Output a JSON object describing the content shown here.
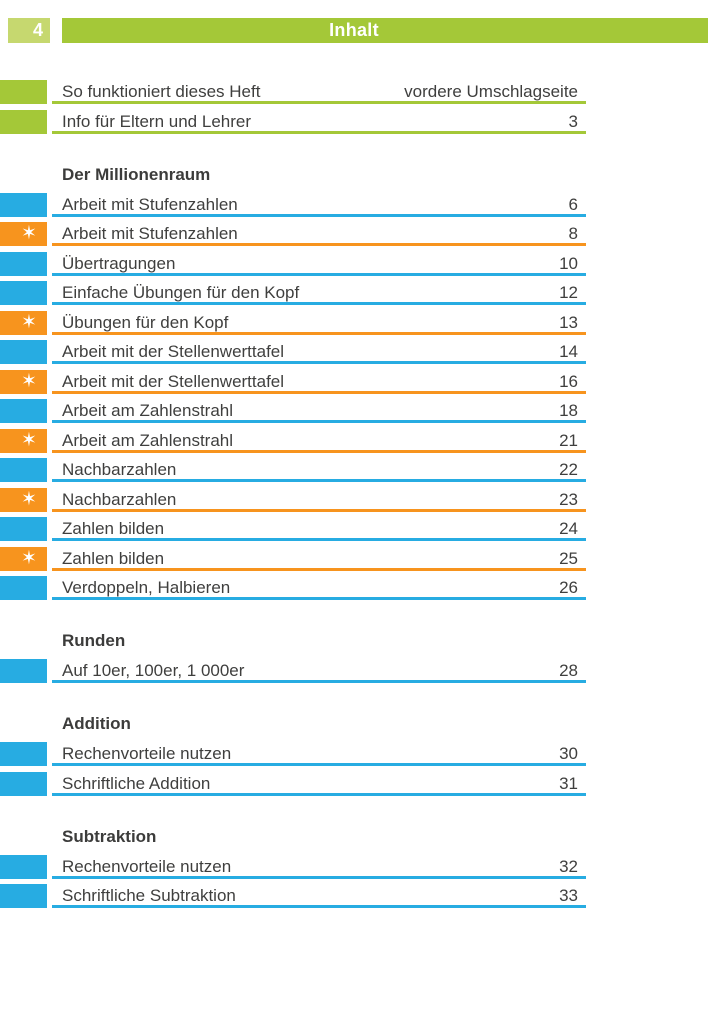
{
  "page": {
    "number": "4",
    "header_title": "Inhalt"
  },
  "colors": {
    "green": "#a4c838",
    "light_green": "#c6d86f",
    "cyan": "#27ace2",
    "orange": "#f7941e",
    "text": "#3f3f3e",
    "white": "#ffffff"
  },
  "icons": {
    "star": "✶"
  },
  "intro_rows": [
    {
      "label": "So funktioniert dieses Heft",
      "page": "vordere Umschlagseite",
      "color": "green",
      "star": false
    },
    {
      "label": "Info für Eltern und Lehrer",
      "page": "3",
      "color": "green",
      "star": false
    }
  ],
  "sections": [
    {
      "title": "Der Millionenraum",
      "rows": [
        {
          "label": "Arbeit mit Stufenzahlen",
          "page": "6",
          "color": "cyan",
          "star": false
        },
        {
          "label": "Arbeit mit Stufenzahlen",
          "page": "8",
          "color": "orange",
          "star": true
        },
        {
          "label": "Übertragungen",
          "page": "10",
          "color": "cyan",
          "star": false
        },
        {
          "label": "Einfache Übungen für den Kopf",
          "page": "12",
          "color": "cyan",
          "star": false
        },
        {
          "label": "Übungen für den Kopf",
          "page": "13",
          "color": "orange",
          "star": true
        },
        {
          "label": "Arbeit mit der Stellenwerttafel",
          "page": "14",
          "color": "cyan",
          "star": false
        },
        {
          "label": "Arbeit mit der Stellenwerttafel",
          "page": "16",
          "color": "orange",
          "star": true
        },
        {
          "label": "Arbeit am Zahlenstrahl",
          "page": "18",
          "color": "cyan",
          "star": false
        },
        {
          "label": "Arbeit am Zahlenstrahl",
          "page": "21",
          "color": "orange",
          "star": true
        },
        {
          "label": "Nachbarzahlen",
          "page": "22",
          "color": "cyan",
          "star": false
        },
        {
          "label": "Nachbarzahlen",
          "page": "23",
          "color": "orange",
          "star": true
        },
        {
          "label": "Zahlen bilden",
          "page": "24",
          "color": "cyan",
          "star": false
        },
        {
          "label": "Zahlen bilden",
          "page": "25",
          "color": "orange",
          "star": true
        },
        {
          "label": "Verdoppeln, Halbieren",
          "page": "26",
          "color": "cyan",
          "star": false
        }
      ]
    },
    {
      "title": "Runden",
      "rows": [
        {
          "label": "Auf 10er, 100er, 1 000er",
          "page": "28",
          "color": "cyan",
          "star": false
        }
      ]
    },
    {
      "title": "Addition",
      "rows": [
        {
          "label": "Rechenvorteile nutzen",
          "page": "30",
          "color": "cyan",
          "star": false
        },
        {
          "label": "Schriftliche Addition",
          "page": "31",
          "color": "cyan",
          "star": false
        }
      ]
    },
    {
      "title": "Subtraktion",
      "rows": [
        {
          "label": "Rechenvorteile nutzen",
          "page": "32",
          "color": "cyan",
          "star": false
        },
        {
          "label": "Schriftliche Subtraktion",
          "page": "33",
          "color": "cyan",
          "star": false
        }
      ]
    }
  ]
}
